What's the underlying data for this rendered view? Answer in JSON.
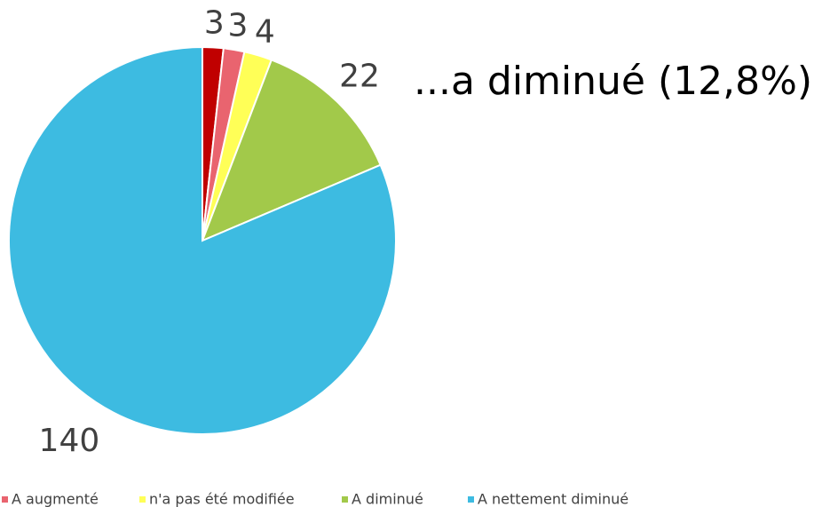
{
  "chart_data": {
    "type": "pie",
    "title": "...a diminué (12,8%)",
    "categories": [
      null,
      "A augmenté",
      "n'a pas été modifiée",
      "A diminué",
      "A nettement diminué"
    ],
    "values": [
      3,
      3,
      4,
      22,
      140
    ],
    "colors": [
      "#c00000",
      "#e9646f",
      "#ffff57",
      "#a2c94a",
      "#3dbbe1"
    ]
  }
}
